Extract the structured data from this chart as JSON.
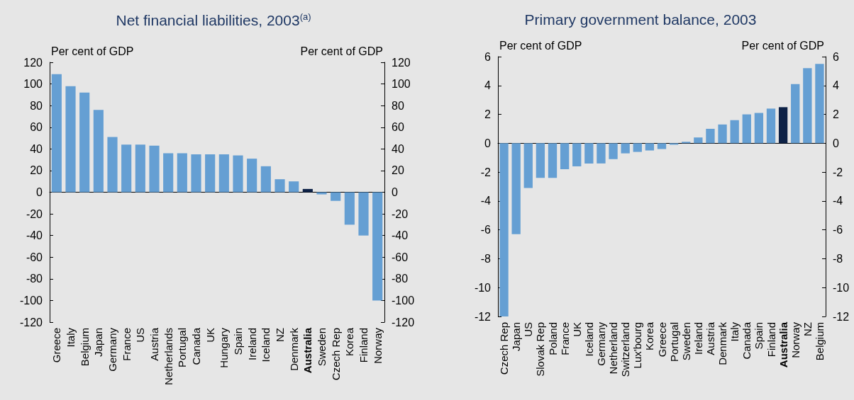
{
  "chart_data": [
    {
      "type": "bar",
      "title": "Net financial liabilities, 2003$^{(a)}$",
      "ylabel": "Per cent of GDP",
      "y2label": "Per cent of GDP",
      "categories": [
        "Greece",
        "Italy",
        "Belgium",
        "Japan",
        "Germany",
        "France",
        "US",
        "Austria",
        "Netherlands",
        "Portugal",
        "Canada",
        "UK",
        "Hungary",
        "Spain",
        "Ireland",
        "Iceland",
        "NZ",
        "Denmark",
        "Australia",
        "Sweden",
        "Czech Rep",
        "Korea",
        "Finland",
        "Norway"
      ],
      "values": [
        109,
        98,
        92,
        76,
        51,
        44,
        44,
        43,
        36,
        36,
        35,
        35,
        35,
        34,
        31,
        24,
        12,
        10,
        3,
        -2,
        -8,
        -30,
        -40,
        -100
      ],
      "colors": [
        "#659fd3",
        "#659fd3",
        "#659fd3",
        "#659fd3",
        "#659fd3",
        "#659fd3",
        "#659fd3",
        "#659fd3",
        "#659fd3",
        "#659fd3",
        "#659fd3",
        "#659fd3",
        "#659fd3",
        "#659fd3",
        "#659fd3",
        "#659fd3",
        "#659fd3",
        "#659fd3",
        "#0d2146",
        "#659fd3",
        "#659fd3",
        "#659fd3",
        "#659fd3",
        "#659fd3"
      ],
      "ylim": [
        -120,
        120
      ],
      "yticks": [
        -120,
        -100,
        -80,
        -60,
        -40,
        -20,
        0,
        20,
        40,
        60,
        80,
        100,
        120
      ],
      "y2lim": [
        -120,
        120
      ],
      "y2ticks": [
        -120,
        -100,
        -80,
        -60,
        -40,
        -20,
        0,
        20,
        40,
        60,
        80,
        100,
        120
      ]
    },
    {
      "type": "bar",
      "title": "Primary government balance, 2003",
      "ylabel": "Per cent of GDP",
      "y2label": "Per cent of GDP",
      "categories": [
        "Czech Rep",
        "Japan",
        "US",
        "Slovak Rep",
        "Poland",
        "France",
        "UK",
        "Iceland",
        "Germany",
        "Netherland",
        "Switzerland",
        "Lux'bourg",
        "Korea",
        "Greece",
        "Portugal",
        "Sweden",
        "Ireland",
        "Austria",
        "Denmark",
        "Italy",
        "Canada",
        "Spain",
        "Finland",
        "Australia",
        "Norway",
        "NZ",
        "Belgium"
      ],
      "values": [
        -12,
        -6.3,
        -3.1,
        -2.4,
        -2.4,
        -1.8,
        -1.6,
        -1.4,
        -1.4,
        -1.1,
        -0.7,
        -0.6,
        -0.5,
        -0.4,
        -0.1,
        0.1,
        0.4,
        1.0,
        1.3,
        1.6,
        2.0,
        2.1,
        2.4,
        2.5,
        4.1,
        5.2,
        5.5
      ],
      "colors": [
        "#659fd3",
        "#659fd3",
        "#659fd3",
        "#659fd3",
        "#659fd3",
        "#659fd3",
        "#659fd3",
        "#659fd3",
        "#659fd3",
        "#659fd3",
        "#659fd3",
        "#659fd3",
        "#659fd3",
        "#659fd3",
        "#659fd3",
        "#659fd3",
        "#659fd3",
        "#659fd3",
        "#659fd3",
        "#659fd3",
        "#659fd3",
        "#659fd3",
        "#659fd3",
        "#0d2146",
        "#659fd3",
        "#659fd3",
        "#659fd3"
      ],
      "ylim": [
        -12,
        6
      ],
      "yticks": [
        -12,
        -10,
        -8,
        -6,
        -4,
        -2,
        0,
        2,
        4,
        6
      ],
      "y2lim": [
        -12,
        6
      ],
      "y2ticks": [
        -12,
        -10,
        -8,
        -6,
        -4,
        -2,
        0,
        2,
        4,
        6
      ]
    }
  ]
}
